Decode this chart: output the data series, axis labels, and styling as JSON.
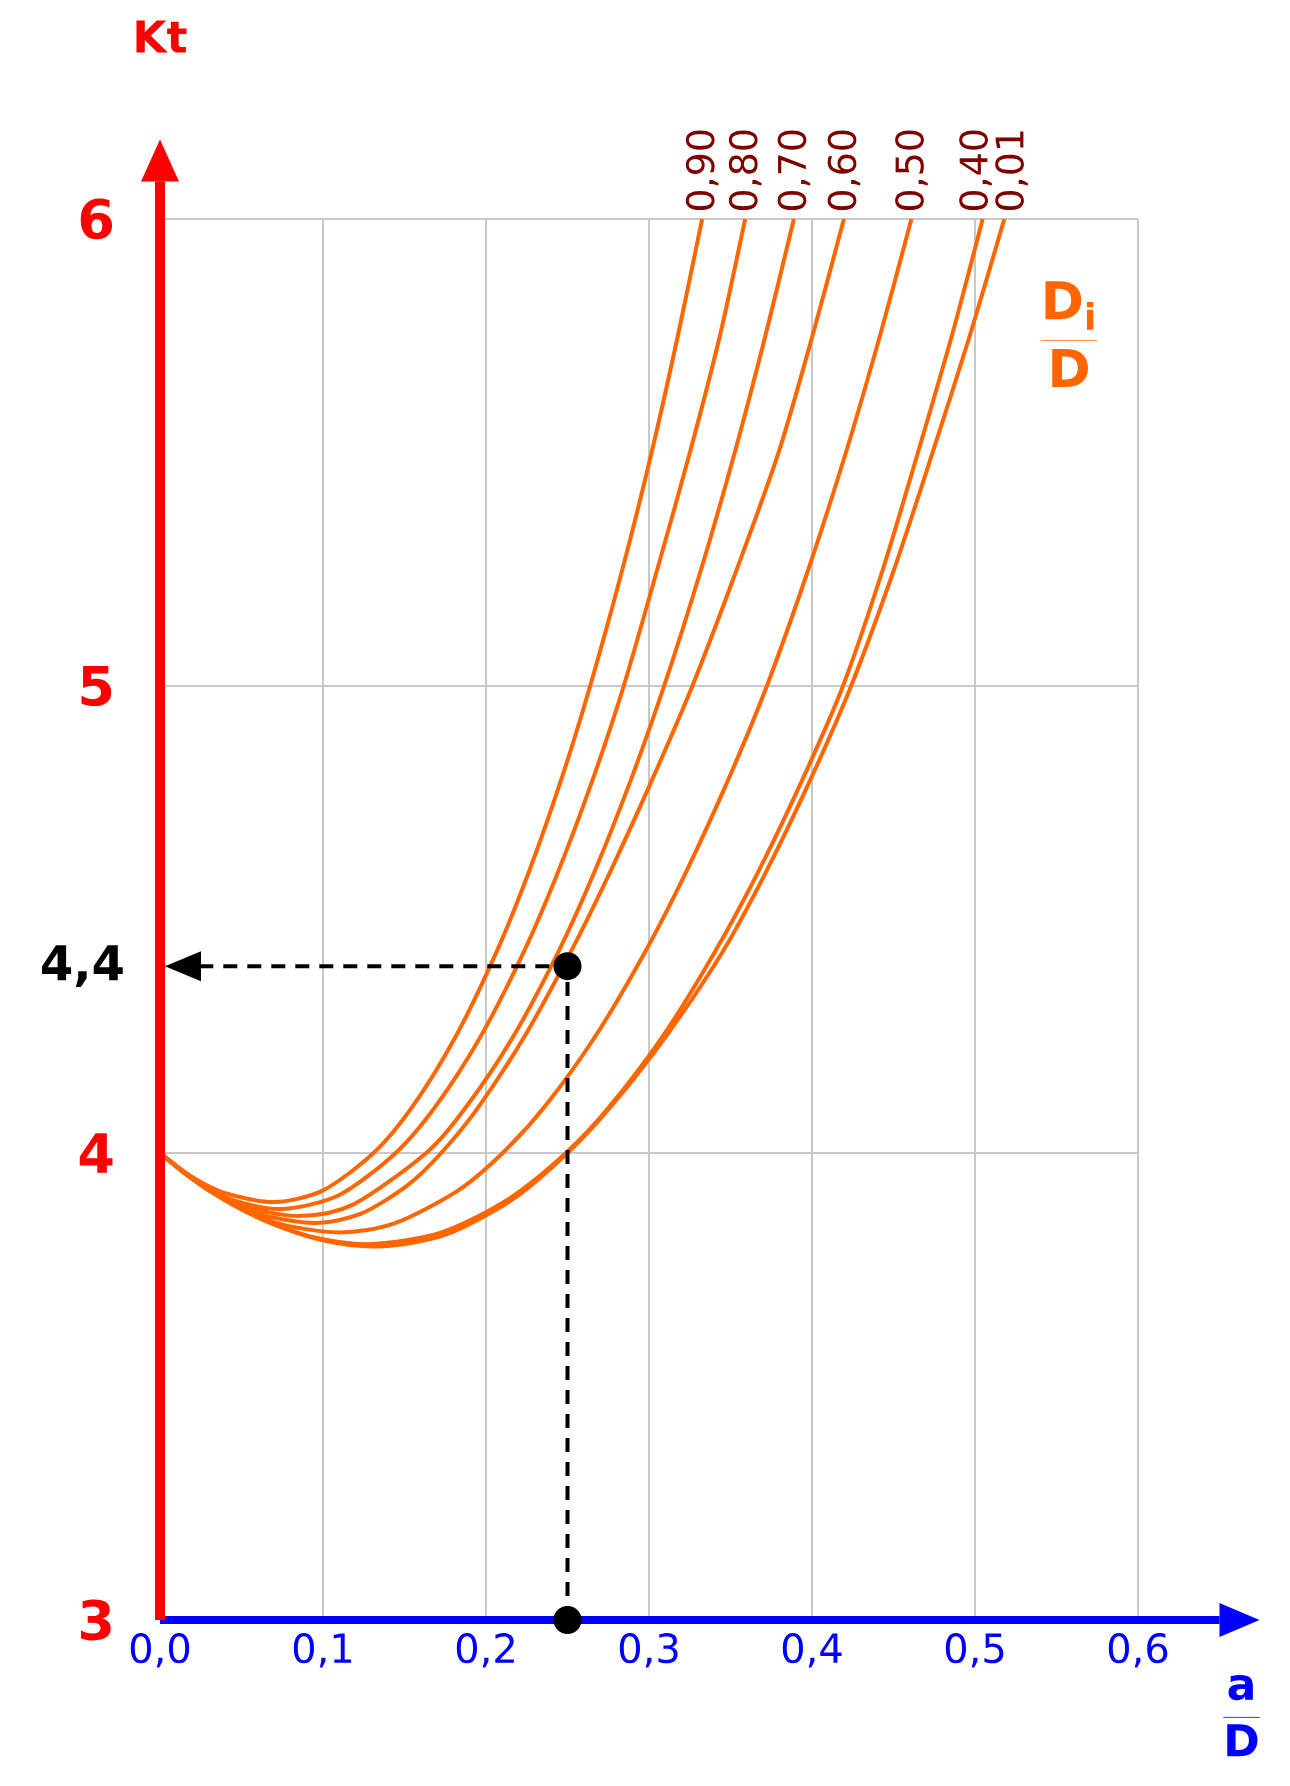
{
  "chart_data": {
    "type": "line",
    "ylabel": "Kt",
    "xlabel": "\\frac{\\mathbf{a}}{\\mathbf{D}}",
    "legend_title": "\\frac{\\mathbf{D}_{\\mathbf{i}}}{\\mathbf{D}}",
    "xlim": [
      0,
      0.65
    ],
    "ylim": [
      3,
      6.08
    ],
    "xticks": [
      {
        "value": 0,
        "label": "0,0"
      },
      {
        "value": 0.1,
        "label": "0,1"
      },
      {
        "value": 0.2,
        "label": "0,2"
      },
      {
        "value": 0.3,
        "label": "0,3"
      },
      {
        "value": 0.4,
        "label": "0,4"
      },
      {
        "value": 0.5,
        "label": "0,5"
      },
      {
        "value": 0.6,
        "label": "0,6"
      }
    ],
    "yticks": [
      3,
      4,
      5,
      6
    ],
    "grid": true,
    "line_style": "solid",
    "annotations": [
      {
        "text": "4,4",
        "x": 0,
        "y": 4.4
      }
    ],
    "series": [
      {
        "name": "0,90",
        "color": "#ff6600",
        "x": [
          0,
          0.02,
          0.04,
          0.07,
          0.1,
          0.131,
          0.155,
          0.1815,
          0.2064,
          0.2261,
          0.2462,
          0.2639,
          0.2837,
          0.3016,
          0.3177,
          0.3326
        ],
        "values": [
          4.0,
          3.948,
          3.914,
          3.895,
          3.92,
          4.0,
          4.1,
          4.25,
          4.43,
          4.6,
          4.8,
          5.0,
          5.25,
          5.5,
          5.75,
          6.0
        ]
      },
      {
        "name": "0,80",
        "color": "#ff6600",
        "x": [
          0,
          0.02,
          0.045,
          0.075,
          0.11,
          0.1446,
          0.1691,
          0.1968,
          0.2231,
          0.244,
          0.2655,
          0.2845,
          0.3051,
          0.3251,
          0.3435,
          0.359
        ],
        "values": [
          4.0,
          3.944,
          3.899,
          3.88,
          3.91,
          4.0,
          4.1,
          4.25,
          4.43,
          4.6,
          4.8,
          5.0,
          5.25,
          5.5,
          5.75,
          6.0
        ]
      },
      {
        "name": "0,70",
        "color": "#ff6600",
        "x": [
          0,
          0.025,
          0.05,
          0.085,
          0.1187,
          0.1633,
          0.1881,
          0.2168,
          0.2443,
          0.2663,
          0.289,
          0.3093,
          0.332,
          0.3526,
          0.3714,
          0.3889
        ],
        "values": [
          4.0,
          3.932,
          3.888,
          3.865,
          3.89,
          4.0,
          4.1,
          4.25,
          4.43,
          4.6,
          4.8,
          5.0,
          5.25,
          5.5,
          5.75,
          6.0
        ]
      },
      {
        "name": "0,60",
        "color": "#ff6600",
        "x": [
          0,
          0.03,
          0.06,
          0.095,
          0.1233,
          0.1516,
          0.1725,
          0.1957,
          0.2237,
          0.2519,
          0.2759,
          0.302,
          0.3266,
          0.3539,
          0.3795,
          0.4003,
          0.4196
        ],
        "values": [
          4.0,
          3.92,
          3.87,
          3.85,
          3.87,
          3.93,
          4.0,
          4.1,
          4.25,
          4.43,
          4.6,
          4.8,
          5.0,
          5.25,
          5.5,
          5.75,
          6.0
        ]
      },
      {
        "name": "0,50",
        "color": "#ff6600",
        "x": [
          0,
          0.03,
          0.07,
          0.11,
          0.1442,
          0.183,
          0.2102,
          0.2362,
          0.2671,
          0.2975,
          0.3225,
          0.3487,
          0.3723,
          0.3978,
          0.4208,
          0.4417,
          0.461
        ],
        "values": [
          4.0,
          3.92,
          3.852,
          3.83,
          3.85,
          3.92,
          4.0,
          4.1,
          4.25,
          4.43,
          4.6,
          4.8,
          5.0,
          5.25,
          5.5,
          5.75,
          6.0
        ]
      },
      {
        "name": "0,40",
        "color": "#ff6600",
        "x": [
          0,
          0.03,
          0.06,
          0.095,
          0.13,
          0.1727,
          0.2132,
          0.249,
          0.2759,
          0.3085,
          0.3403,
          0.3667,
          0.3942,
          0.419,
          0.4435,
          0.465,
          0.4858,
          0.5047
        ],
        "values": [
          4.0,
          3.92,
          3.862,
          3.819,
          3.805,
          3.83,
          3.9,
          4.0,
          4.1,
          4.25,
          4.43,
          4.6,
          4.8,
          5.0,
          5.25,
          5.5,
          5.75,
          6.0
        ]
      },
      {
        "name": "0,01",
        "color": "#ff6600",
        "x": [
          0,
          0.03,
          0.065,
          0.1,
          0.135,
          0.1753,
          0.216,
          0.25,
          0.2768,
          0.3104,
          0.345,
          0.3715,
          0.3991,
          0.424,
          0.4504,
          0.474,
          0.4968,
          0.518
        ],
        "values": [
          4.0,
          3.921,
          3.854,
          3.813,
          3.8,
          3.825,
          3.9,
          4.0,
          4.1,
          4.25,
          4.43,
          4.6,
          4.8,
          5.0,
          5.25,
          5.5,
          5.75,
          6.0
        ]
      },
      {
        "color": "#000000",
        "line_style": "dashed",
        "marker": "circle",
        "x": [
          0.25,
          0.25,
          0
        ],
        "values": [
          3,
          4.4,
          4.4
        ]
      }
    ]
  }
}
